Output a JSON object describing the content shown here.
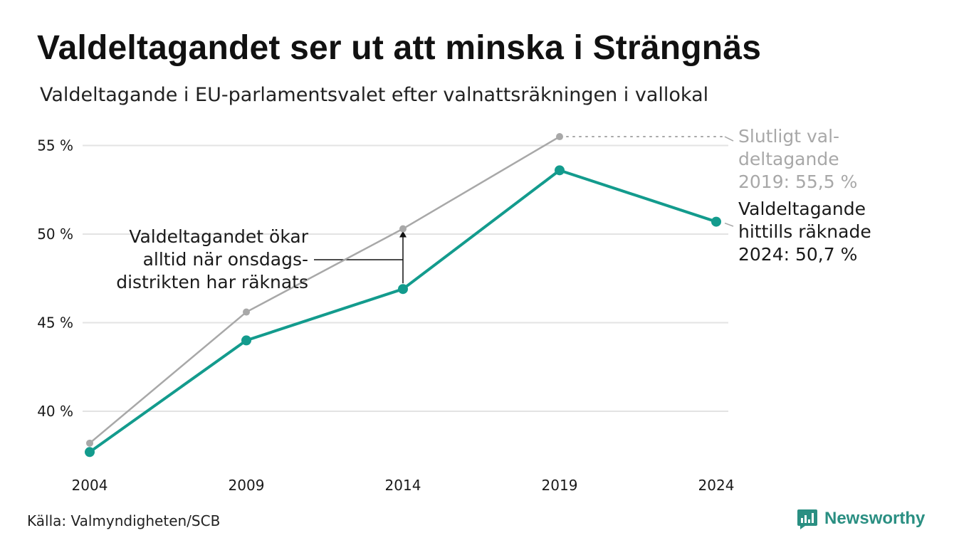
{
  "title": "Valdeltagandet ser ut att minska i Strängnäs",
  "subtitle": "Valdeltagande i EU-parlamentsvalet efter valnattsräkningen i vallokal",
  "source": "Källa: Valmyndigheten/SCB",
  "brand": "Newsworthy",
  "colors": {
    "primary": "#139b8d",
    "secondary": "#a8a8a8",
    "grid": "#e3e3e3",
    "text": "#1a1a1a",
    "muted_text": "#a8a8a8",
    "brand": "#2a8f82"
  },
  "chart_data": {
    "type": "line",
    "x": [
      2004,
      2009,
      2014,
      2019,
      2024
    ],
    "x_tick_labels": [
      "2004",
      "2009",
      "2014",
      "2019",
      "2024"
    ],
    "y_ticks": [
      40,
      45,
      50,
      55
    ],
    "y_tick_labels": [
      "40 %",
      "45 %",
      "50 %",
      "55 %"
    ],
    "ylim": [
      37,
      56
    ],
    "grid": true,
    "series": [
      {
        "key": "final",
        "color": "#a8a8a8",
        "values": [
          38.2,
          45.6,
          50.3,
          55.5,
          null
        ]
      },
      {
        "key": "counted",
        "color": "#139b8d",
        "values": [
          37.7,
          44.0,
          46.9,
          53.6,
          50.7
        ]
      }
    ],
    "annotations": {
      "final_label": [
        "Slutligt val-",
        "deltagande",
        "2019: 55,5 %"
      ],
      "counted_label": [
        "Valdeltagande",
        "hittills räknade",
        "2024: 50,7 %"
      ],
      "gap_note": [
        "Valdeltagandet ökar",
        "alltid när onsdags-",
        "distrikten har räknats"
      ]
    }
  }
}
